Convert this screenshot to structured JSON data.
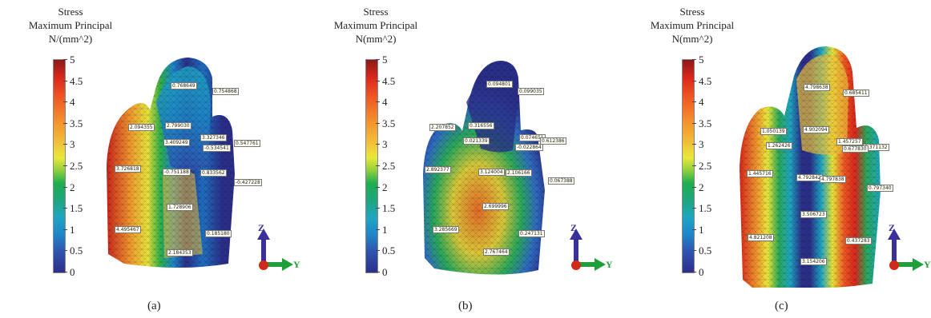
{
  "panels": [
    {
      "caption": "(a)",
      "legend": {
        "line1": "Stress",
        "line2": "Maximum Principal",
        "line3": "N/(mm^2)"
      },
      "ticks": [
        "5",
        "4.5",
        "4",
        "3.5",
        "3",
        "2.5",
        "2",
        "1.5",
        "1",
        "0.5",
        "0"
      ],
      "labels": [
        "0.768649",
        "0.754868",
        "2.094355",
        "2.799030",
        "3.409249",
        "3.327346",
        "0.547761",
        "-0.534541",
        "3.726818",
        "-0.751188",
        "0.833562",
        "-0.427228",
        "1.728906",
        "4.495467",
        "0.185180",
        "2.184353"
      ]
    },
    {
      "caption": "(b)",
      "legend": {
        "line1": "Stress",
        "line2": "Maximum Principal",
        "line3": "N(mm^2)"
      },
      "ticks": [
        "5",
        "4.5",
        "4",
        "3.5",
        "3",
        "2.5",
        "2",
        "1.5",
        "1",
        "0.5",
        "0"
      ],
      "labels": [
        "0.094801",
        "0.099035",
        "2.207852",
        "0.316556",
        "0.021339",
        "0.074651",
        "0.612386",
        "-0.022864",
        "2.892377",
        "3.124004",
        "2.106166",
        "0.067388",
        "2.699996",
        "3.285669",
        "0.247131",
        "2.767464"
      ]
    },
    {
      "caption": "(c)",
      "legend": {
        "line1": "Stress",
        "line2": "Maximum Principal",
        "line3": "N(mm^2)"
      },
      "ticks": [
        "5",
        "4.5",
        "4",
        "3.5",
        "3",
        "2.5",
        "2",
        "1.5",
        "1",
        "0.5",
        "0"
      ],
      "labels": [
        "4.798638",
        "0.685411",
        "1.050139",
        "4.902094",
        "1.262426",
        "1.457257",
        "0.371132",
        "0.677830",
        "1.445716",
        "4.792842",
        "4.797838",
        "0.797340",
        "3.506723",
        "4.821208",
        "0.437283",
        "3.154206"
      ]
    }
  ],
  "axes": {
    "z": "Z",
    "y": "Y"
  }
}
